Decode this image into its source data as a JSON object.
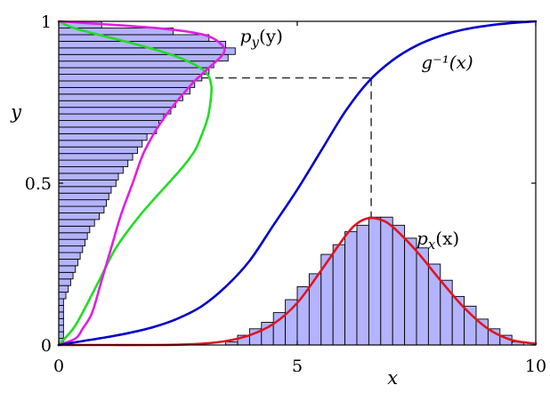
{
  "chart_data": {
    "type": "line",
    "xlabel": "x",
    "ylabel": "y",
    "xlim": [
      0,
      10
    ],
    "ylim": [
      0,
      1
    ],
    "x_ticks": [
      {
        "value": 0,
        "label": "0"
      },
      {
        "value": 5,
        "label": "5"
      },
      {
        "value": 10,
        "label": "10"
      }
    ],
    "y_ticks": [
      {
        "value": 0,
        "label": "0"
      },
      {
        "value": 0.5,
        "label": "0.5"
      },
      {
        "value": 1,
        "label": "1"
      }
    ],
    "grid": false,
    "colors": {
      "g_inv": "#0000cc",
      "px_curve": "#e0141e",
      "py_curve": "#e020e0",
      "py_alt_curve": "#22dd22",
      "hist_fill": "#b3b3ff",
      "hist_edge": "#000000",
      "guide": "#000000"
    },
    "annotations": {
      "px": {
        "base": "p",
        "sub": "x",
        "arg": "(x)",
        "at": [
          7.5,
          0.31
        ]
      },
      "py": {
        "base": "p",
        "sub": "y",
        "arg": "(y)",
        "at": [
          3.8,
          0.935
        ]
      },
      "ginv": {
        "text": "g⁻¹(x)",
        "at": [
          7.6,
          0.855
        ]
      }
    },
    "guide_point": {
      "x": 6.55,
      "y": 0.825
    },
    "series": [
      {
        "id": "g_inv",
        "type": "line",
        "color": "#0000cc",
        "x": [
          0,
          0.5,
          1,
          1.5,
          2,
          2.5,
          3,
          3.5,
          4,
          4.5,
          5,
          5.5,
          6,
          6.5,
          7,
          7.5,
          8,
          8.5,
          9,
          9.5,
          10
        ],
        "y": [
          0.0,
          0.012,
          0.024,
          0.038,
          0.056,
          0.082,
          0.12,
          0.18,
          0.26,
          0.37,
          0.48,
          0.6,
          0.72,
          0.815,
          0.88,
          0.925,
          0.955,
          0.975,
          0.987,
          0.995,
          1.0
        ]
      },
      {
        "id": "px_curve",
        "type": "line",
        "color": "#e0141e",
        "x": [
          0,
          1,
          2,
          2.5,
          3,
          3.5,
          4,
          4.5,
          5,
          5.5,
          6,
          6.25,
          6.5,
          6.75,
          7,
          7.5,
          8,
          8.5,
          9,
          9.5,
          10
        ],
        "y": [
          0.0,
          0.0,
          0.0,
          0.001,
          0.004,
          0.012,
          0.03,
          0.065,
          0.13,
          0.23,
          0.335,
          0.375,
          0.392,
          0.387,
          0.365,
          0.29,
          0.2,
          0.115,
          0.05,
          0.015,
          0.004
        ]
      },
      {
        "id": "py_curve",
        "type": "line",
        "color": "#e020e0",
        "y": [
          0.0,
          0.02,
          0.05,
          0.1,
          0.2,
          0.3,
          0.4,
          0.5,
          0.6,
          0.7,
          0.8,
          0.85,
          0.9,
          0.93,
          0.96,
          0.98,
          1.0
        ],
        "x": [
          0.0,
          0.35,
          0.5,
          0.7,
          0.9,
          1.1,
          1.3,
          1.55,
          1.8,
          2.2,
          2.75,
          3.1,
          3.45,
          3.4,
          3.0,
          2.0,
          0.0
        ]
      },
      {
        "id": "py_alt_curve",
        "type": "line",
        "color": "#22dd22",
        "y": [
          0.0,
          0.05,
          0.1,
          0.2,
          0.3,
          0.4,
          0.5,
          0.55,
          0.6,
          0.65,
          0.7,
          0.75,
          0.8,
          0.84,
          0.87,
          0.9,
          0.93,
          0.96,
          0.98,
          1.0
        ],
        "x": [
          0.0,
          0.3,
          0.5,
          0.85,
          1.2,
          1.7,
          2.3,
          2.6,
          2.85,
          3.0,
          3.12,
          3.18,
          3.2,
          3.1,
          2.8,
          2.3,
          1.6,
          0.8,
          0.3,
          0.0
        ]
      },
      {
        "id": "hist_x",
        "type": "bar",
        "bin_width": 0.25,
        "bin_left": [
          3.5,
          3.75,
          4.0,
          4.25,
          4.5,
          4.75,
          5.0,
          5.25,
          5.5,
          5.75,
          6.0,
          6.25,
          6.5,
          6.75,
          7.0,
          7.25,
          7.5,
          7.75,
          8.0,
          8.25,
          8.5,
          8.75,
          9.0,
          9.25,
          9.5
        ],
        "values": [
          0.01,
          0.03,
          0.05,
          0.07,
          0.1,
          0.14,
          0.18,
          0.22,
          0.28,
          0.31,
          0.35,
          0.37,
          0.395,
          0.395,
          0.37,
          0.33,
          0.3,
          0.25,
          0.2,
          0.15,
          0.12,
          0.08,
          0.05,
          0.03,
          0.01
        ]
      },
      {
        "id": "hist_y",
        "type": "barh",
        "bin_height": 0.0204,
        "bin_bottom": [
          0.0,
          0.0204,
          0.0408,
          0.0612,
          0.0816,
          0.102,
          0.1224,
          0.1428,
          0.1632,
          0.1836,
          0.204,
          0.2244,
          0.2448,
          0.2652,
          0.2856,
          0.306,
          0.3264,
          0.3468,
          0.3672,
          0.3876,
          0.408,
          0.4284,
          0.4488,
          0.4692,
          0.4896,
          0.51,
          0.5304,
          0.5508,
          0.5712,
          0.5916,
          0.612,
          0.6324,
          0.6528,
          0.6732,
          0.6936,
          0.714,
          0.7344,
          0.7548,
          0.7752,
          0.7956,
          0.816,
          0.8364,
          0.8568,
          0.8772,
          0.8976,
          0.918,
          0.9384,
          0.9588,
          0.9792
        ],
        "values": [
          0.1,
          0.1,
          0.1,
          0.1,
          0.1,
          0.1,
          0.1,
          0.15,
          0.2,
          0.25,
          0.3,
          0.35,
          0.4,
          0.45,
          0.5,
          0.55,
          0.6,
          0.65,
          0.75,
          0.85,
          0.95,
          1.0,
          1.05,
          1.1,
          1.2,
          1.25,
          1.35,
          1.45,
          1.55,
          1.65,
          1.75,
          1.85,
          2.05,
          2.1,
          2.2,
          2.35,
          2.45,
          2.6,
          2.75,
          2.85,
          3.0,
          3.15,
          3.25,
          3.55,
          3.7,
          3.5,
          3.15,
          2.4,
          0.9
        ]
      }
    ]
  }
}
